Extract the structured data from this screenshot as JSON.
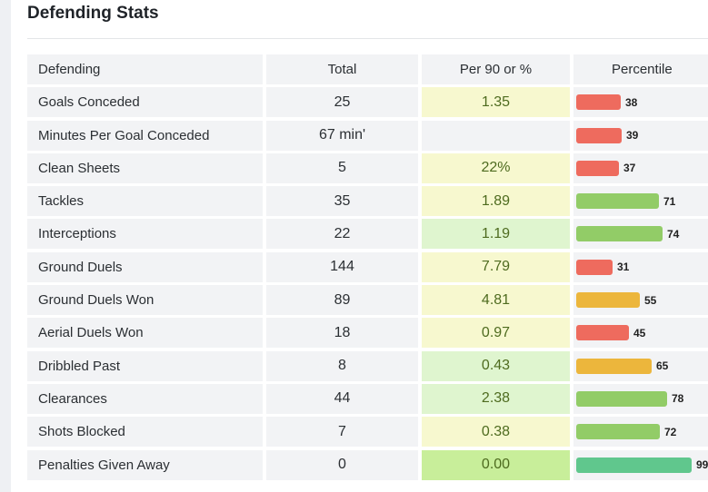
{
  "section": {
    "title": "Defending Stats"
  },
  "columns": {
    "name": "Defending",
    "total": "Total",
    "per90": "Per 90 or %",
    "percentile": "Percentile"
  },
  "colors": {
    "bar_red": "#ee6b5e",
    "bar_yellow": "#ecb63c",
    "bar_green": "#92cc67",
    "bar_teal": "#60c78d",
    "cell_yellow": "#f7f8cf",
    "cell_light_green": "#dff5cf",
    "cell_green": "#c8ee9a",
    "cell_default": "#f2f3f5",
    "text_per90": "#4e6b1f"
  },
  "rows": [
    {
      "name": "Goals Conceded",
      "total": "25",
      "per90": "1.35",
      "per90_tone": "cell_yellow",
      "percentile": 38,
      "percentile_label": "38",
      "bar_color": "bar_red"
    },
    {
      "name": "Minutes Per Goal Conceded",
      "total": "67 min'",
      "per90": "",
      "per90_tone": "cell_default",
      "percentile": 39,
      "percentile_label": "39",
      "bar_color": "bar_red"
    },
    {
      "name": "Clean Sheets",
      "total": "5",
      "per90": "22%",
      "per90_tone": "cell_yellow",
      "percentile": 37,
      "percentile_label": "37",
      "bar_color": "bar_red"
    },
    {
      "name": "Tackles",
      "total": "35",
      "per90": "1.89",
      "per90_tone": "cell_yellow",
      "percentile": 71,
      "percentile_label": "71",
      "bar_color": "bar_green"
    },
    {
      "name": "Interceptions",
      "total": "22",
      "per90": "1.19",
      "per90_tone": "cell_light_green",
      "percentile": 74,
      "percentile_label": "74",
      "bar_color": "bar_green"
    },
    {
      "name": "Ground Duels",
      "total": "144",
      "per90": "7.79",
      "per90_tone": "cell_yellow",
      "percentile": 31,
      "percentile_label": "31",
      "bar_color": "bar_red"
    },
    {
      "name": "Ground Duels Won",
      "total": "89",
      "per90": "4.81",
      "per90_tone": "cell_yellow",
      "percentile": 55,
      "percentile_label": "55",
      "bar_color": "bar_yellow"
    },
    {
      "name": "Aerial Duels Won",
      "total": "18",
      "per90": "0.97",
      "per90_tone": "cell_yellow",
      "percentile": 45,
      "percentile_label": "45",
      "bar_color": "bar_red"
    },
    {
      "name": "Dribbled Past",
      "total": "8",
      "per90": "0.43",
      "per90_tone": "cell_light_green",
      "percentile": 65,
      "percentile_label": "65",
      "bar_color": "bar_yellow"
    },
    {
      "name": "Clearances",
      "total": "44",
      "per90": "2.38",
      "per90_tone": "cell_light_green",
      "percentile": 78,
      "percentile_label": "78",
      "bar_color": "bar_green"
    },
    {
      "name": "Shots Blocked",
      "total": "7",
      "per90": "0.38",
      "per90_tone": "cell_yellow",
      "percentile": 72,
      "percentile_label": "72",
      "bar_color": "bar_green"
    },
    {
      "name": "Penalties Given Away",
      "total": "0",
      "per90": "0.00",
      "per90_tone": "cell_green",
      "percentile": 99,
      "percentile_label": "99",
      "bar_color": "bar_teal"
    }
  ]
}
